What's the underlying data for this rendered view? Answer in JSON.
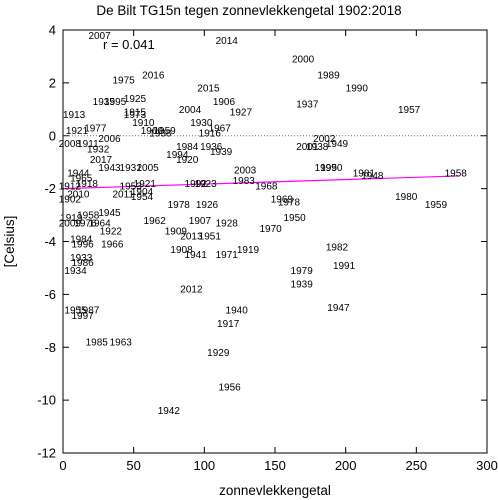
{
  "chart_data": {
    "type": "scatter",
    "title": "De Bilt TG15n tegen zonnevlekkengetal 1902:2018",
    "xlabel": "zonnevlekkengetal",
    "ylabel": "[Celsius]",
    "xlim": [
      0,
      300
    ],
    "ylim": [
      -12,
      4
    ],
    "xticks": [
      0,
      50,
      100,
      150,
      200,
      250,
      300
    ],
    "yticks": [
      -12,
      -10,
      -8,
      -6,
      -4,
      -2,
      0,
      2,
      4
    ],
    "grid": false,
    "annotation": "r =  0.041",
    "trend_line": {
      "x": [
        0,
        280
      ],
      "y": [
        -2.0,
        -1.52
      ],
      "color": "#ff00ff"
    },
    "zero_line": {
      "y": 0,
      "style": "dotted"
    },
    "points": [
      {
        "label": "2007",
        "x": 18,
        "y": 3.8
      },
      {
        "label": "2014",
        "x": 108,
        "y": 3.6
      },
      {
        "label": "2000",
        "x": 162,
        "y": 2.9
      },
      {
        "label": "1989",
        "x": 180,
        "y": 2.3
      },
      {
        "label": "1975",
        "x": 35,
        "y": 2.1
      },
      {
        "label": "2016",
        "x": 56,
        "y": 2.3
      },
      {
        "label": "1990",
        "x": 200,
        "y": 1.8
      },
      {
        "label": "2015",
        "x": 95,
        "y": 1.8
      },
      {
        "label": "1906",
        "x": 106,
        "y": 1.3
      },
      {
        "label": "1937",
        "x": 165,
        "y": 1.2
      },
      {
        "label": "1957",
        "x": 237,
        "y": 1.0
      },
      {
        "label": "1935",
        "x": 21,
        "y": 1.3
      },
      {
        "label": "1995",
        "x": 29,
        "y": 1.3
      },
      {
        "label": "1925",
        "x": 43,
        "y": 1.4
      },
      {
        "label": "1913",
        "x": 0,
        "y": 0.8
      },
      {
        "label": "1915",
        "x": 43,
        "y": 0.9
      },
      {
        "label": "1973",
        "x": 43,
        "y": 0.8
      },
      {
        "label": "2004",
        "x": 82,
        "y": 1.0
      },
      {
        "label": "1927",
        "x": 118,
        "y": 0.9
      },
      {
        "label": "1910",
        "x": 49,
        "y": 0.5
      },
      {
        "label": "1930",
        "x": 90,
        "y": 0.5
      },
      {
        "label": "1921",
        "x": 2,
        "y": 0.2
      },
      {
        "label": "1977",
        "x": 15,
        "y": 0.3
      },
      {
        "label": "1960",
        "x": 55,
        "y": 0.2
      },
      {
        "label": "1959",
        "x": 64,
        "y": 0.2
      },
      {
        "label": "1938",
        "x": 61,
        "y": 0.1
      },
      {
        "label": "1967",
        "x": 103,
        "y": 0.3
      },
      {
        "label": "1916",
        "x": 96,
        "y": 0.1
      },
      {
        "label": "2008",
        "x": -3,
        "y": -0.3
      },
      {
        "label": "1911",
        "x": 10,
        "y": -0.3
      },
      {
        "label": "2006",
        "x": 25,
        "y": -0.1
      },
      {
        "label": "1932",
        "x": 17,
        "y": -0.5
      },
      {
        "label": "2001",
        "x": 165,
        "y": -0.4
      },
      {
        "label": "1938",
        "x": 172,
        "y": -0.4
      },
      {
        "label": "2002",
        "x": 177,
        "y": -0.1
      },
      {
        "label": "1949",
        "x": 186,
        "y": -0.3
      },
      {
        "label": "1984",
        "x": 80,
        "y": -0.4
      },
      {
        "label": "1936",
        "x": 97,
        "y": -0.4
      },
      {
        "label": "1994",
        "x": 73,
        "y": -0.7
      },
      {
        "label": "1920",
        "x": 80,
        "y": -0.9
      },
      {
        "label": "2017",
        "x": 19,
        "y": -0.9
      },
      {
        "label": "1943",
        "x": 25,
        "y": -1.2
      },
      {
        "label": "1931",
        "x": 40,
        "y": -1.2
      },
      {
        "label": "2005",
        "x": 52,
        "y": -1.2
      },
      {
        "label": "1939",
        "x": 104,
        "y": -0.6
      },
      {
        "label": "1999",
        "x": 178,
        "y": -1.2
      },
      {
        "label": "1950",
        "x": 182,
        "y": -1.2
      },
      {
        "label": "1981",
        "x": 205,
        "y": -1.4
      },
      {
        "label": "1948",
        "x": 211,
        "y": -1.5
      },
      {
        "label": "2003",
        "x": 121,
        "y": -1.3
      },
      {
        "label": "1958",
        "x": 270,
        "y": -1.4
      },
      {
        "label": "1944",
        "x": 3,
        "y": -1.4
      },
      {
        "label": "1965",
        "x": 5,
        "y": -1.6
      },
      {
        "label": "1918",
        "x": 9,
        "y": -1.8
      },
      {
        "label": "1912",
        "x": -3,
        "y": -1.9
      },
      {
        "label": "1953",
        "x": 40,
        "y": -1.9
      },
      {
        "label": "1921",
        "x": 50,
        "y": -1.8
      },
      {
        "label": "1983",
        "x": 120,
        "y": -1.7
      },
      {
        "label": "1968",
        "x": 136,
        "y": -1.9
      },
      {
        "label": "1992",
        "x": 86,
        "y": -1.8
      },
      {
        "label": "1923",
        "x": 93,
        "y": -1.8
      },
      {
        "label": "2010",
        "x": 3,
        "y": -2.2
      },
      {
        "label": "1902",
        "x": -3,
        "y": -2.4
      },
      {
        "label": "2011",
        "x": 35,
        "y": -2.2
      },
      {
        "label": "1904",
        "x": 48,
        "y": -2.1
      },
      {
        "label": "1954",
        "x": 48,
        "y": -2.3
      },
      {
        "label": "1969",
        "x": 147,
        "y": -2.4
      },
      {
        "label": "1978",
        "x": 152,
        "y": -2.5
      },
      {
        "label": "1980",
        "x": 235,
        "y": -2.3
      },
      {
        "label": "1959",
        "x": 256,
        "y": -2.6
      },
      {
        "label": "1978",
        "x": 74,
        "y": -2.6
      },
      {
        "label": "1926",
        "x": 94,
        "y": -2.6
      },
      {
        "label": "1945",
        "x": 25,
        "y": -2.9
      },
      {
        "label": "1919",
        "x": -2,
        "y": -3.1
      },
      {
        "label": "1958",
        "x": 10,
        "y": -3.0
      },
      {
        "label": "2009",
        "x": -3,
        "y": -3.3
      },
      {
        "label": "1976",
        "x": 8,
        "y": -3.3
      },
      {
        "label": "1964",
        "x": 18,
        "y": -3.3
      },
      {
        "label": "1922",
        "x": 26,
        "y": -3.6
      },
      {
        "label": "1962",
        "x": 57,
        "y": -3.2
      },
      {
        "label": "1907",
        "x": 89,
        "y": -3.2
      },
      {
        "label": "1928",
        "x": 108,
        "y": -3.3
      },
      {
        "label": "1950",
        "x": 156,
        "y": -3.1
      },
      {
        "label": "1970",
        "x": 139,
        "y": -3.5
      },
      {
        "label": "1909",
        "x": 72,
        "y": -3.6
      },
      {
        "label": "2013",
        "x": 83,
        "y": -3.8
      },
      {
        "label": "1951",
        "x": 96,
        "y": -3.8
      },
      {
        "label": "1984",
        "x": 5,
        "y": -3.9
      },
      {
        "label": "1966",
        "x": 27,
        "y": -4.1
      },
      {
        "label": "1996",
        "x": 6,
        "y": -4.1
      },
      {
        "label": "1908",
        "x": 76,
        "y": -4.3
      },
      {
        "label": "1941",
        "x": 86,
        "y": -4.5
      },
      {
        "label": "1971",
        "x": 108,
        "y": -4.5
      },
      {
        "label": "1919",
        "x": 123,
        "y": -4.3
      },
      {
        "label": "1982",
        "x": 186,
        "y": -4.2
      },
      {
        "label": "1933",
        "x": 5,
        "y": -4.6
      },
      {
        "label": "1986",
        "x": 6,
        "y": -4.8
      },
      {
        "label": "1991",
        "x": 191,
        "y": -4.9
      },
      {
        "label": "1934",
        "x": 1,
        "y": -5.1
      },
      {
        "label": "1979",
        "x": 161,
        "y": -5.1
      },
      {
        "label": "1939",
        "x": 161,
        "y": -5.6
      },
      {
        "label": "2012",
        "x": 83,
        "y": -5.8
      },
      {
        "label": "1940",
        "x": 115,
        "y": -6.6
      },
      {
        "label": "1947",
        "x": 187,
        "y": -6.5
      },
      {
        "label": "1955",
        "x": 1,
        "y": -6.6
      },
      {
        "label": "1987",
        "x": 10,
        "y": -6.6
      },
      {
        "label": "1997",
        "x": 6,
        "y": -6.8
      },
      {
        "label": "1917",
        "x": 109,
        "y": -7.1
      },
      {
        "label": "1985",
        "x": 16,
        "y": -7.8
      },
      {
        "label": "1963",
        "x": 33,
        "y": -7.8
      },
      {
        "label": "1929",
        "x": 102,
        "y": -8.2
      },
      {
        "label": "1956",
        "x": 110,
        "y": -9.5
      },
      {
        "label": "1942",
        "x": 67,
        "y": -10.4
      }
    ]
  }
}
